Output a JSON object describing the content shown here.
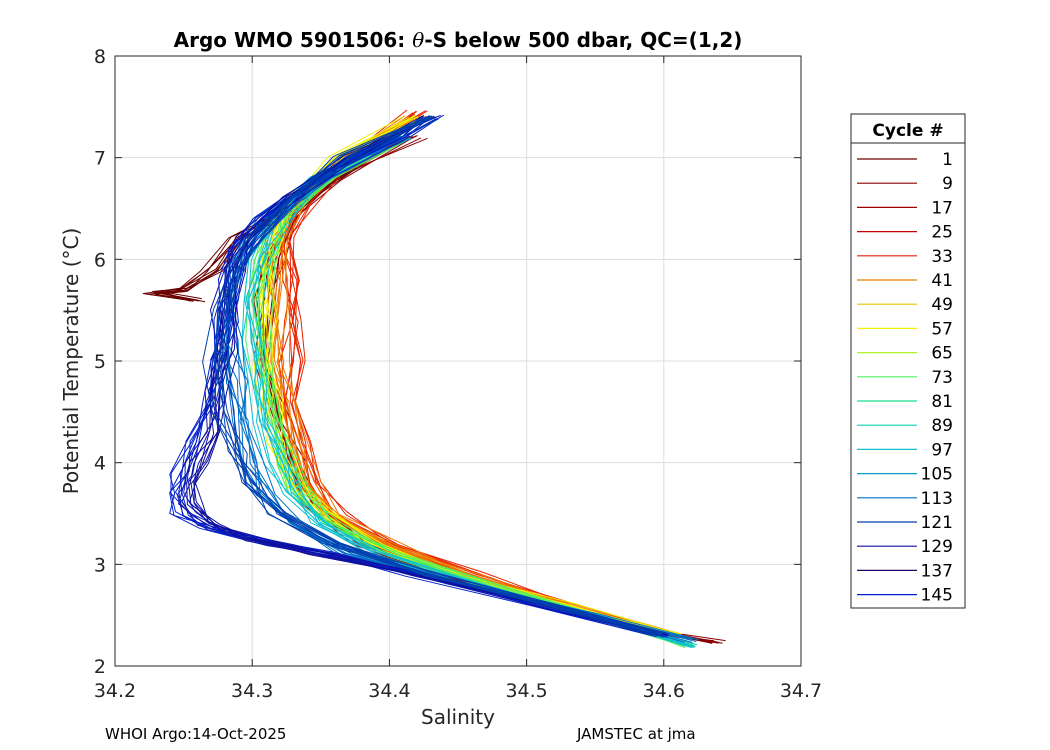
{
  "chart_data": {
    "type": "line",
    "title": "Argo WMO 5901506: θ-S below 500 dbar,  QC=(1,2)",
    "title_parts": {
      "prefix": "Argo WMO 5901506: ",
      "theta": "θ",
      "suffix": "-S below 500 dbar,  QC=(1,2)"
    },
    "xlabel": "Salinity",
    "ylabel": "Potential Temperature (°C)",
    "xlim": [
      34.2,
      34.7
    ],
    "ylim": [
      2,
      8
    ],
    "xticks": [
      "34.2",
      "34.3",
      "34.4",
      "34.5",
      "34.6",
      "34.7"
    ],
    "yticks": [
      "2",
      "3",
      "4",
      "5",
      "6",
      "7",
      "8"
    ],
    "grid": true,
    "legend_title": "Cycle #",
    "legend_placement": "outside-right",
    "series": [
      {
        "name": "1",
        "color": "#6b0000"
      },
      {
        "name": "9",
        "color": "#8a0000"
      },
      {
        "name": "17",
        "color": "#a00000"
      },
      {
        "name": "25",
        "color": "#c80000"
      },
      {
        "name": "33",
        "color": "#e62200"
      },
      {
        "name": "41",
        "color": "#ee7a00"
      },
      {
        "name": "49",
        "color": "#e8c400"
      },
      {
        "name": "57",
        "color": "#f2f200"
      },
      {
        "name": "65",
        "color": "#b0f22a"
      },
      {
        "name": "73",
        "color": "#50f060"
      },
      {
        "name": "81",
        "color": "#18e08c"
      },
      {
        "name": "89",
        "color": "#10d0b0"
      },
      {
        "name": "97",
        "color": "#10c0d0"
      },
      {
        "name": "105",
        "color": "#0aa0c8"
      },
      {
        "name": "113",
        "color": "#0070c8"
      },
      {
        "name": "121",
        "color": "#0040b0"
      },
      {
        "name": "129",
        "color": "#1010a0"
      },
      {
        "name": "137",
        "color": "#2a0060"
      },
      {
        "name": "145",
        "color": "#0020d0"
      }
    ],
    "representative_profiles": [
      {
        "color": "#8a0000",
        "theta": [
          2.23,
          2.35,
          2.6,
          2.9,
          3.2,
          3.6,
          4.0,
          4.45,
          5.0,
          5.6,
          6.0,
          6.4,
          6.8,
          7.2
        ],
        "salinity": [
          34.64,
          34.59,
          34.52,
          34.44,
          34.38,
          34.34,
          34.33,
          34.32,
          34.31,
          34.31,
          34.315,
          34.33,
          34.36,
          34.42
        ]
      },
      {
        "color": "#6b0000",
        "theta": [
          5.6,
          5.67,
          5.7,
          5.9,
          6.2,
          6.5,
          6.9
        ],
        "salinity": [
          34.26,
          34.23,
          34.25,
          34.27,
          34.29,
          34.33,
          34.37
        ]
      },
      {
        "color": "#e62200",
        "theta": [
          2.3,
          2.6,
          2.9,
          3.2,
          3.5,
          3.8,
          4.2,
          4.6,
          5.0,
          5.4,
          5.8,
          6.2,
          6.6,
          7.0,
          7.45
        ],
        "salinity": [
          34.61,
          34.53,
          34.46,
          34.4,
          34.36,
          34.345,
          34.335,
          34.33,
          34.33,
          34.33,
          34.33,
          34.325,
          34.34,
          34.37,
          34.42
        ]
      },
      {
        "color": "#ee7a00",
        "theta": [
          2.3,
          2.6,
          2.9,
          3.2,
          3.5,
          3.8,
          4.2,
          4.6,
          5.0,
          5.4,
          5.8,
          6.2,
          6.6,
          7.0,
          7.4
        ],
        "salinity": [
          34.61,
          34.53,
          34.46,
          34.4,
          34.36,
          34.34,
          34.33,
          34.325,
          34.32,
          34.32,
          34.32,
          34.32,
          34.335,
          34.37,
          34.42
        ]
      },
      {
        "color": "#f2f200",
        "theta": [
          2.3,
          2.6,
          2.9,
          3.2,
          3.5,
          3.8,
          4.2,
          4.6,
          5.0,
          5.4,
          5.8,
          6.2,
          6.6,
          7.0,
          7.4
        ],
        "salinity": [
          34.61,
          34.53,
          34.45,
          34.39,
          34.35,
          34.33,
          34.32,
          34.315,
          34.31,
          34.31,
          34.31,
          34.315,
          34.33,
          34.365,
          34.42
        ]
      },
      {
        "color": "#50f060",
        "theta": [
          2.2,
          2.5,
          2.8,
          3.1,
          3.4,
          3.7,
          4.0,
          4.4,
          4.8,
          5.2,
          5.6,
          6.0,
          6.4,
          6.8,
          7.2
        ],
        "salinity": [
          34.62,
          34.55,
          34.47,
          34.4,
          34.36,
          34.335,
          34.325,
          34.315,
          34.31,
          34.305,
          34.305,
          34.31,
          34.32,
          34.355,
          34.41
        ]
      },
      {
        "color": "#10c0d0",
        "theta": [
          2.2,
          2.5,
          2.8,
          3.1,
          3.4,
          3.7,
          4.0,
          4.4,
          4.8,
          5.2,
          5.6,
          6.0,
          6.4,
          6.8,
          7.2
        ],
        "salinity": [
          34.62,
          34.55,
          34.46,
          34.39,
          34.35,
          34.33,
          34.32,
          34.31,
          34.305,
          34.3,
          34.3,
          34.305,
          34.32,
          34.35,
          34.41
        ]
      },
      {
        "color": "#0070c8",
        "theta": [
          2.25,
          2.5,
          2.8,
          3.1,
          3.4,
          3.7,
          4.0,
          4.4,
          4.8,
          5.2,
          5.6,
          6.0,
          6.4,
          6.8,
          7.2
        ],
        "salinity": [
          34.62,
          34.55,
          34.45,
          34.37,
          34.33,
          34.31,
          34.3,
          34.295,
          34.29,
          34.285,
          34.285,
          34.29,
          34.31,
          34.35,
          34.41
        ]
      },
      {
        "color": "#0020d0",
        "theta": [
          2.3,
          2.6,
          2.9,
          3.1,
          3.2,
          3.35,
          3.5,
          3.7,
          3.9,
          4.2,
          4.6,
          5.0,
          5.4,
          5.8,
          6.1,
          6.4,
          6.8,
          7.2,
          7.4
        ],
        "salinity": [
          34.6,
          34.51,
          34.42,
          34.36,
          34.32,
          34.27,
          34.25,
          34.245,
          34.25,
          34.26,
          34.27,
          34.275,
          34.28,
          34.285,
          34.29,
          34.31,
          34.35,
          34.41,
          34.43
        ]
      },
      {
        "color": "#1010a0",
        "theta": [
          2.3,
          2.6,
          2.9,
          3.1,
          3.25,
          3.4,
          3.6,
          3.8,
          4.0,
          4.3,
          4.7,
          5.1,
          5.5,
          5.9,
          6.2,
          6.6,
          7.0,
          7.4
        ],
        "salinity": [
          34.6,
          34.51,
          34.42,
          34.35,
          34.3,
          34.27,
          34.255,
          34.255,
          34.26,
          34.27,
          34.275,
          34.28,
          34.28,
          34.285,
          34.295,
          34.325,
          34.37,
          34.43
        ]
      },
      {
        "color": "#0040b0",
        "theta": [
          2.3,
          2.6,
          2.9,
          3.2,
          3.5,
          3.8,
          4.1,
          4.5,
          5.0,
          5.5,
          5.9,
          6.2,
          6.6,
          7.0,
          7.4
        ],
        "salinity": [
          34.6,
          34.52,
          34.43,
          34.36,
          34.32,
          34.3,
          34.29,
          34.28,
          34.275,
          34.28,
          34.29,
          34.3,
          34.33,
          34.37,
          34.43
        ]
      }
    ]
  },
  "footer": {
    "left": "WHOI Argo:14-Oct-2025",
    "right": "JAMSTEC at jma"
  }
}
